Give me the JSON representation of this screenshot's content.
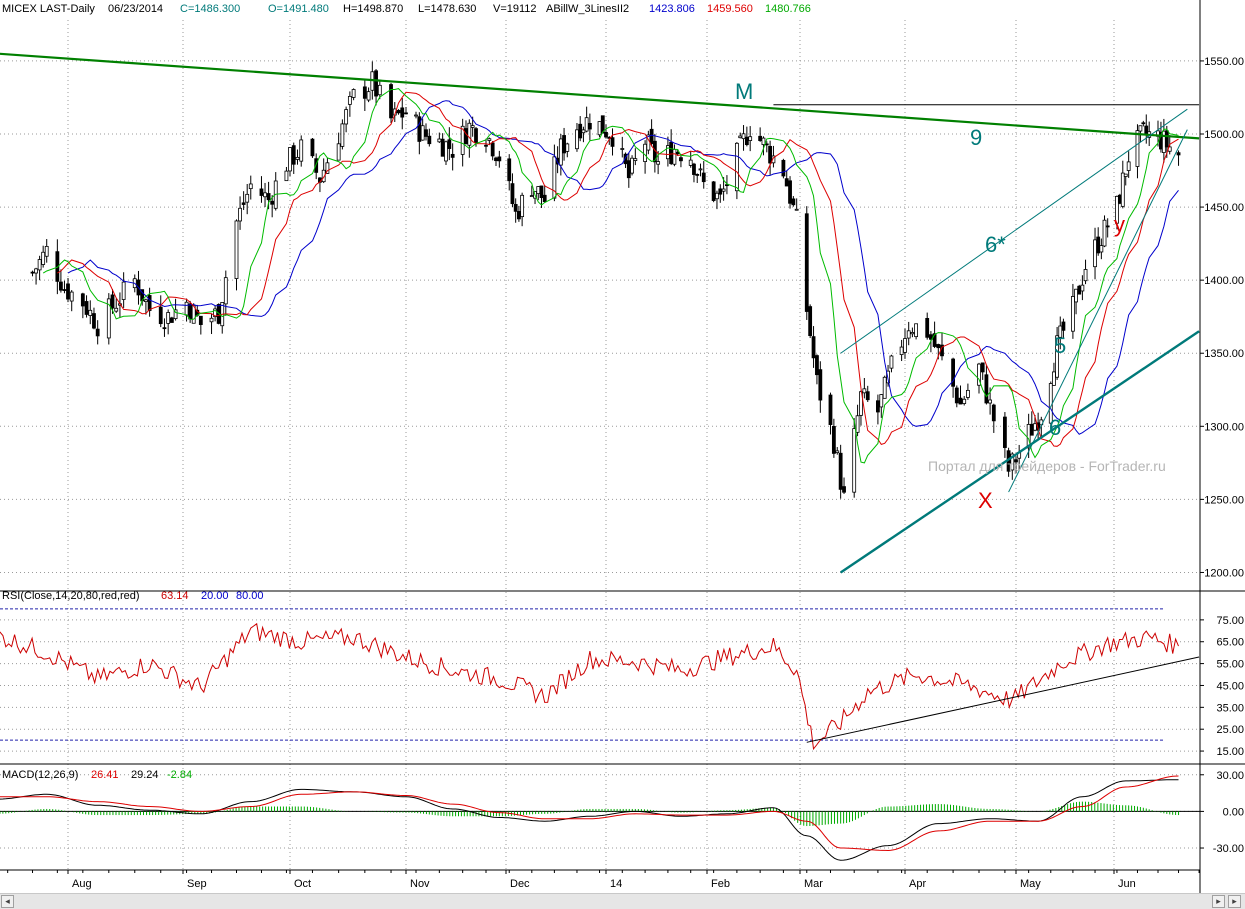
{
  "header": {
    "symbol": "MICEX LAST-Daily",
    "date": "06/23/2014",
    "close": "C=1486.300",
    "open": "O=1491.480",
    "high": "H=1498.870",
    "low": "L=1478.630",
    "volume": "V=19112",
    "indicator_name": "ABillW_3LinesII2",
    "ind_blue": "1423.806",
    "ind_red": "1459.560",
    "ind_green": "1480.766"
  },
  "rsi_header": {
    "name": "RSI(Close,14,20,80,red,red)",
    "value": "63.14",
    "low": "20.00",
    "high": "80.00"
  },
  "macd_header": {
    "name": "MACD(12,26,9)",
    "macd": "26.41",
    "signal": "29.24",
    "hist": "-2.84"
  },
  "annotations": {
    "M": "M",
    "nine": "9",
    "six_star": "6*",
    "five": "5",
    "six": "6",
    "X": "X",
    "y": "y"
  },
  "watermark": "Портал для трейдеров - ForTrader.ru",
  "colors": {
    "green_ma": "#00bb00",
    "red_ma": "#dd0000",
    "blue_ma": "#0000cc",
    "trend_green": "#008000",
    "trend_teal": "#007a7a",
    "rsi": "#cc0000",
    "macd": "#000000",
    "signal": "#dd0000",
    "hist": "#00aa00"
  },
  "chart_data": [
    {
      "type": "candlestick",
      "title": "MICEX LAST-Daily",
      "x_ticks": [
        "Aug",
        "Sep",
        "Oct",
        "Nov",
        "Dec",
        "14",
        "Feb",
        "Mar",
        "Apr",
        "May",
        "Jun"
      ],
      "y_ticks": [
        "1550.00",
        "1500.00",
        "1450.00",
        "1400.00",
        "1350.00",
        "1300.00",
        "1250.00",
        "1200.00"
      ],
      "ylim": [
        1188,
        1578
      ],
      "grid": true,
      "close_path": [
        [
          "2013-07-22",
          1405
        ],
        [
          "2013-07-26",
          1420
        ],
        [
          "2013-07-31",
          1395
        ],
        [
          "2013-08-05",
          1385
        ],
        [
          "2013-08-09",
          1370
        ],
        [
          "2013-08-14",
          1385
        ],
        [
          "2013-08-19",
          1400
        ],
        [
          "2013-08-23",
          1380
        ],
        [
          "2013-08-28",
          1375
        ],
        [
          "2013-09-02",
          1385
        ],
        [
          "2013-09-06",
          1370
        ],
        [
          "2013-09-11",
          1378
        ],
        [
          "2013-09-16",
          1440
        ],
        [
          "2013-09-20",
          1465
        ],
        [
          "2013-09-25",
          1455
        ],
        [
          "2013-09-30",
          1480
        ],
        [
          "2013-10-04",
          1490
        ],
        [
          "2013-10-09",
          1470
        ],
        [
          "2013-10-14",
          1500
        ],
        [
          "2013-10-18",
          1525
        ],
        [
          "2013-10-23",
          1535
        ],
        [
          "2013-10-28",
          1510
        ],
        [
          "2013-11-01",
          1515
        ],
        [
          "2013-11-06",
          1500
        ],
        [
          "2013-11-11",
          1495
        ],
        [
          "2013-11-15",
          1490
        ],
        [
          "2013-11-20",
          1505
        ],
        [
          "2013-11-25",
          1500
        ],
        [
          "2013-11-29",
          1485
        ],
        [
          "2013-12-04",
          1445
        ],
        [
          "2013-12-09",
          1465
        ],
        [
          "2013-12-13",
          1455
        ],
        [
          "2013-12-18",
          1490
        ],
        [
          "2013-12-23",
          1505
        ],
        [
          "2013-12-27",
          1510
        ],
        [
          "2014-01-03",
          1500
        ],
        [
          "2014-01-08",
          1470
        ],
        [
          "2014-01-13",
          1495
        ],
        [
          "2014-01-17",
          1480
        ],
        [
          "2014-01-22",
          1490
        ],
        [
          "2014-01-27",
          1485
        ],
        [
          "2014-01-31",
          1465
        ],
        [
          "2014-02-05",
          1455
        ],
        [
          "2014-02-10",
          1485
        ],
        [
          "2014-02-14",
          1505
        ],
        [
          "2014-02-19",
          1490
        ],
        [
          "2014-02-24",
          1475
        ],
        [
          "2014-02-28",
          1440
        ],
        [
          "2014-03-03",
          1380
        ],
        [
          "2014-03-06",
          1330
        ],
        [
          "2014-03-11",
          1290
        ],
        [
          "2014-03-14",
          1250
        ],
        [
          "2014-03-19",
          1320
        ],
        [
          "2014-03-24",
          1310
        ],
        [
          "2014-03-28",
          1340
        ],
        [
          "2014-04-02",
          1370
        ],
        [
          "2014-04-07",
          1365
        ],
        [
          "2014-04-11",
          1345
        ],
        [
          "2014-04-16",
          1315
        ],
        [
          "2014-04-21",
          1340
        ],
        [
          "2014-04-25",
          1305
        ],
        [
          "2014-04-29",
          1270
        ],
        [
          "2014-05-05",
          1295
        ],
        [
          "2014-05-09",
          1310
        ],
        [
          "2014-05-14",
          1355
        ],
        [
          "2014-05-19",
          1380
        ],
        [
          "2014-05-23",
          1410
        ],
        [
          "2014-05-28",
          1430
        ],
        [
          "2014-06-02",
          1450
        ],
        [
          "2014-06-06",
          1485
        ],
        [
          "2014-06-11",
          1500
        ],
        [
          "2014-06-16",
          1498
        ],
        [
          "2014-06-23",
          1486
        ]
      ],
      "lines": [
        {
          "name": "9",
          "points": [
            [
              "2013-07-12",
              1555
            ],
            [
              "2014-06-30",
              1497
            ]
          ]
        },
        {
          "name": "6",
          "points": [
            [
              "2014-03-13",
              1200
            ],
            [
              "2014-06-30",
              1365
            ]
          ]
        },
        {
          "name": "6*",
          "points": [
            [
              "2014-03-13",
              1350
            ],
            [
              "2014-06-26",
              1517
            ]
          ]
        },
        {
          "name": "5",
          "points": [
            [
              "2014-04-29",
              1255
            ],
            [
              "2014-06-26",
              1503
            ]
          ]
        },
        {
          "name": "M",
          "points": [
            [
              "2014-02-21",
              1520
            ],
            [
              "2014-06-30",
              1520
            ]
          ]
        }
      ]
    },
    {
      "type": "line",
      "title": "RSI(Close,14,20,80,red,red)",
      "y_ticks": [
        "75.00",
        "65.00",
        "55.00",
        "45.00",
        "35.00",
        "25.00",
        "15.00"
      ],
      "ylim": [
        10,
        85
      ],
      "levels": [
        20,
        80
      ],
      "x": [
        "2013-07-12",
        "2013-07-26",
        "2013-08-09",
        "2013-08-23",
        "2013-09-06",
        "2013-09-20",
        "2013-10-04",
        "2013-10-18",
        "2013-11-01",
        "2013-11-15",
        "2013-11-29",
        "2013-12-13",
        "2013-12-27",
        "2014-01-10",
        "2014-01-24",
        "2014-02-07",
        "2014-02-21",
        "2014-02-28",
        "2014-03-05",
        "2014-03-13",
        "2014-03-21",
        "2014-04-04",
        "2014-04-18",
        "2014-04-30",
        "2014-05-16",
        "2014-05-30",
        "2014-06-13",
        "2014-06-23"
      ],
      "values": [
        68,
        60,
        48,
        55,
        44,
        70,
        65,
        67,
        58,
        52,
        48,
        40,
        57,
        56,
        52,
        58,
        63,
        52,
        18,
        28,
        42,
        50,
        45,
        38,
        56,
        64,
        67,
        63
      ],
      "lines": [
        {
          "name": "trend",
          "points": [
            [
              "2014-03-03",
              19
            ],
            [
              "2014-06-30",
              58
            ]
          ]
        }
      ]
    },
    {
      "type": "line",
      "title": "MACD(12,26,9)",
      "y_ticks": [
        "30.00",
        "0.00",
        "-30.00"
      ],
      "ylim": [
        -48,
        38
      ],
      "x": [
        "2013-07-12",
        "2013-07-26",
        "2013-08-09",
        "2013-08-23",
        "2013-09-06",
        "2013-09-20",
        "2013-10-04",
        "2013-10-18",
        "2013-11-01",
        "2013-11-15",
        "2013-11-29",
        "2013-12-13",
        "2013-12-27",
        "2014-01-10",
        "2014-01-24",
        "2014-02-07",
        "2014-02-21",
        "2014-03-03",
        "2014-03-13",
        "2014-03-27",
        "2014-04-10",
        "2014-04-24",
        "2014-05-08",
        "2014-05-22",
        "2014-06-05",
        "2014-06-23"
      ],
      "series": [
        {
          "name": "MACD",
          "values": [
            10,
            14,
            5,
            1,
            -2,
            8,
            18,
            16,
            12,
            2,
            -5,
            -8,
            -4,
            0,
            -4,
            -2,
            3,
            -20,
            -40,
            -28,
            -10,
            -6,
            -8,
            12,
            25,
            26
          ]
        },
        {
          "name": "Signal",
          "values": [
            12,
            12,
            8,
            4,
            0,
            4,
            14,
            16,
            13,
            6,
            -1,
            -6,
            -6,
            -2,
            -3,
            -3,
            0,
            -8,
            -30,
            -32,
            -16,
            -8,
            -8,
            4,
            20,
            29
          ]
        }
      ],
      "histogram": [
        -2,
        2,
        -3,
        -3,
        -2,
        4,
        4,
        0,
        -1,
        -4,
        -4,
        -2,
        2,
        2,
        -1,
        1,
        3,
        -12,
        -10,
        4,
        6,
        2,
        0,
        8,
        5,
        -3
      ]
    }
  ]
}
